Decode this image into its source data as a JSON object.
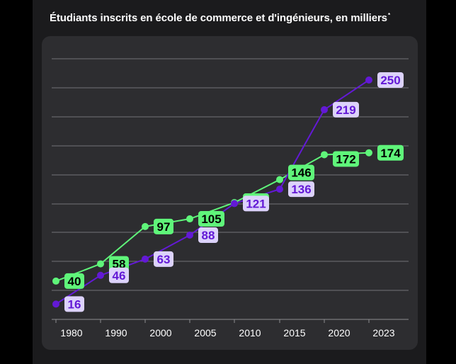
{
  "title": "Étudiants inscrits en école de commerce et d'ingénieurs, en milliers",
  "title_note": "*",
  "colors": {
    "background": "#000000",
    "card": "#1b1b1d",
    "panel": "#2d2d30",
    "grid": "#8d8d8f",
    "green": "#5ff57a",
    "green_label_text": "#000000",
    "purple": "#6319d6",
    "purple_label_bg": "#dcd2fb",
    "purple_label_text": "#6319d6",
    "axis_text": "#ffffff"
  },
  "chart_data": {
    "type": "line",
    "title": "Étudiants inscrits en école de commerce et d'ingénieurs, en milliers",
    "x": [
      "1980",
      "1990",
      "2000",
      "2005",
      "2010",
      "2015",
      "2020",
      "2023"
    ],
    "series": [
      {
        "color": "#5ff57a",
        "values": [
          40,
          58,
          97,
          105,
          122,
          146,
          172,
          174
        ]
      },
      {
        "color": "#6319d6",
        "values": [
          16,
          46,
          63,
          88,
          121,
          136,
          219,
          250
        ]
      }
    ],
    "ylim": [
      0,
      260
    ],
    "y_axis_labels_shown": false,
    "grid": true,
    "legend": "none",
    "data_labels": true
  }
}
